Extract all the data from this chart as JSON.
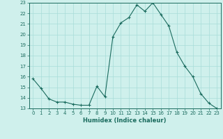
{
  "x": [
    0,
    1,
    2,
    3,
    4,
    5,
    6,
    7,
    8,
    9,
    10,
    11,
    12,
    13,
    14,
    15,
    16,
    17,
    18,
    19,
    20,
    21,
    22,
    23
  ],
  "y": [
    15.8,
    14.9,
    13.9,
    13.6,
    13.6,
    13.4,
    13.3,
    13.3,
    15.1,
    14.1,
    19.8,
    21.1,
    21.6,
    22.8,
    22.2,
    23.0,
    21.9,
    20.8,
    18.3,
    17.0,
    16.0,
    14.4,
    13.5,
    13.0
  ],
  "line_color": "#1a6b5e",
  "marker": "+",
  "marker_size": 3,
  "bg_color": "#cff0ec",
  "grid_color": "#a8ddd8",
  "xlabel": "Humidex (Indice chaleur)",
  "xlim": [
    -0.5,
    23.5
  ],
  "ylim": [
    13,
    23
  ],
  "yticks": [
    13,
    14,
    15,
    16,
    17,
    18,
    19,
    20,
    21,
    22,
    23
  ],
  "xticks": [
    0,
    1,
    2,
    3,
    4,
    5,
    6,
    7,
    8,
    9,
    10,
    11,
    12,
    13,
    14,
    15,
    16,
    17,
    18,
    19,
    20,
    21,
    22,
    23
  ],
  "tick_color": "#1a6b5e",
  "label_color": "#1a6b5e",
  "axis_color": "#1a6b5e"
}
